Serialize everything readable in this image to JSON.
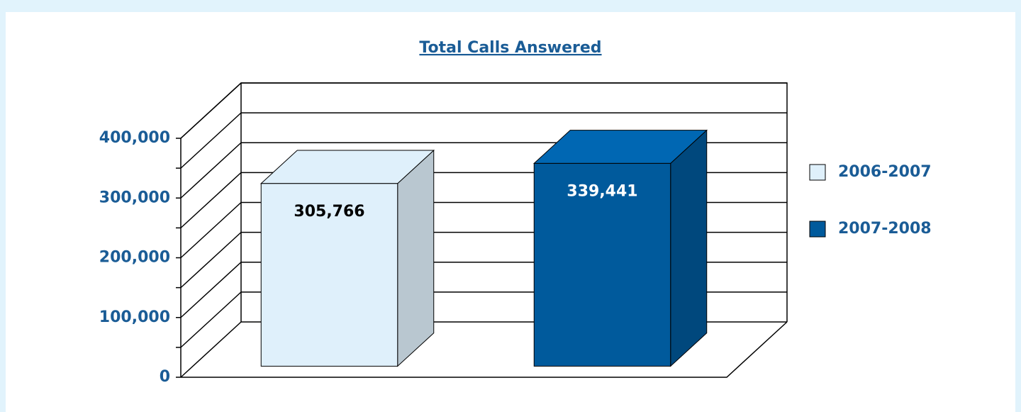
{
  "chart_data": {
    "type": "bar3d",
    "title": "Total Calls Answered",
    "series": [
      {
        "name": "2006-2007",
        "color": "#dff0fb",
        "values": [
          305766
        ],
        "value_labels": [
          "305,766"
        ]
      },
      {
        "name": "2007-2008",
        "color": "#005a9c",
        "values": [
          339441
        ],
        "value_labels": [
          "339,441"
        ]
      }
    ],
    "ylim": [
      0,
      400000
    ],
    "yticks": [
      0,
      {
        "value": 100000,
        "label": "100,000"
      },
      {
        "value": 200000,
        "label": "200,000"
      },
      {
        "value": 300000,
        "label": "300,000"
      },
      {
        "value": 400000,
        "label": "400,000"
      }
    ],
    "grid": true,
    "legend": "right",
    "text_color": "#1a5c96"
  }
}
